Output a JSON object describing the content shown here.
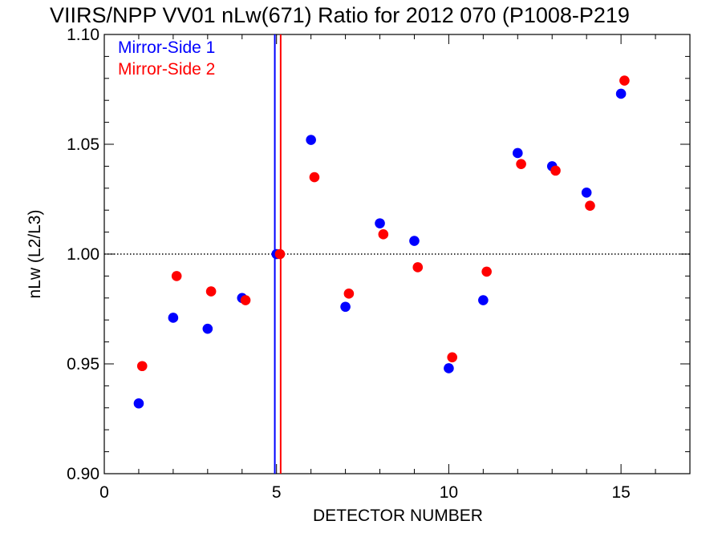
{
  "chart_data": {
    "type": "scatter",
    "title": "VIIRS/NPP VV01 nLw(671) Ratio for 2012 070 (P1008-P219",
    "xlabel": "DETECTOR NUMBER",
    "ylabel": "nLw (L2/L3)",
    "xlim": [
      0,
      17
    ],
    "ylim": [
      0.9,
      1.1
    ],
    "x_ticks": [
      0,
      5,
      10,
      15
    ],
    "x_tick_labels": [
      "0",
      "5",
      "10",
      "15"
    ],
    "y_ticks": [
      0.9,
      0.95,
      1.0,
      1.05,
      1.1
    ],
    "y_tick_labels": [
      "0.90",
      "0.95",
      "1.00",
      "1.05",
      "1.10"
    ],
    "reference_line_y": 1.0,
    "legend_position": "top-left",
    "series": [
      {
        "name": "Mirror-Side 1",
        "color": "#0000ff",
        "x": [
          1,
          2,
          3,
          4,
          5,
          6,
          7,
          8,
          9,
          10,
          11,
          12,
          13,
          14,
          15
        ],
        "y": [
          0.932,
          0.971,
          0.966,
          0.98,
          1.0,
          1.052,
          0.976,
          1.014,
          1.006,
          0.948,
          0.979,
          1.046,
          1.04,
          1.028,
          1.073
        ]
      },
      {
        "name": "Mirror-Side 2",
        "color": "#ff0000",
        "x": [
          1.1,
          2.1,
          3.1,
          4.1,
          5.1,
          6.1,
          7.1,
          8.1,
          9.1,
          10.1,
          11.1,
          12.1,
          13.1,
          14.1,
          15.1
        ],
        "y": [
          0.949,
          0.99,
          0.983,
          0.979,
          1.0,
          1.035,
          0.982,
          1.009,
          0.994,
          0.953,
          0.992,
          1.041,
          1.038,
          1.022,
          1.079
        ]
      }
    ],
    "vertical_lines": [
      {
        "x": 4.95,
        "color": "#0000ff"
      },
      {
        "x": 5.12,
        "color": "#ff0000"
      }
    ]
  }
}
